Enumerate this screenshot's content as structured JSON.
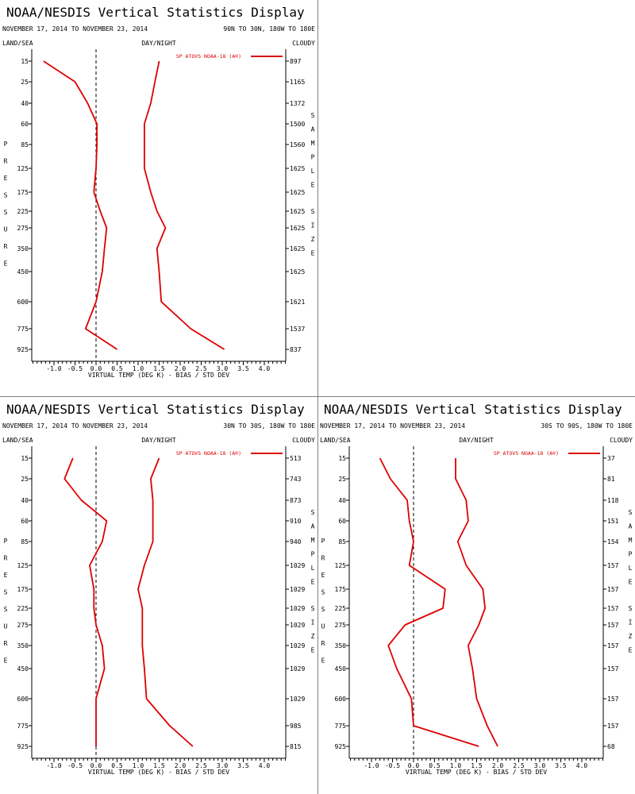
{
  "window": {
    "title": "NOAA/NESDIS Vertical Statistics Display"
  },
  "colors": {
    "series": "#dd0000",
    "axis": "#000000",
    "zero_line": "#000000",
    "divider": "#808080"
  },
  "panels": [
    {
      "title": "NOAA/NESDIS Vertical Statistics Display",
      "date_range": "NOVEMBER 17, 2014 TO NOVEMBER 23, 2014",
      "region": "90N TO 30N, 180W TO 180E",
      "left_corner": "LAND/SEA",
      "center_header": "DAY/NIGHT",
      "right_corner": "CLOUDY",
      "left_side_label": "PRESSURE",
      "right_side_label": "SAMPLE SIZE",
      "legend": "SP ATOVS NOAA-18 (A®)"
    },
    {
      "title": "NOAA/NESDIS Vertical Statistics Display",
      "date_range": "NOVEMBER 17, 2014 TO NOVEMBER 23, 2014",
      "region": "30N TO 30S, 180W TO 180E",
      "left_corner": "LAND/SEA",
      "center_header": "DAY/NIGHT",
      "right_corner": "CLOUDY",
      "left_side_label": "PRESSURE",
      "right_side_label": "SAMPLE SIZE",
      "legend": "SP ATOVS NOAA-18 (A®)"
    },
    {
      "title": "NOAA/NESDIS Vertical Statistics Display",
      "date_range": "NOVEMBER 17, 2014 TO NOVEMBER 23, 2014",
      "region": "30S TO 90S, 180W TO 180E",
      "left_corner": "LAND/SEA",
      "center_header": "DAY/NIGHT",
      "right_corner": "CLOUDY",
      "left_side_label": "PRESSURE",
      "right_side_label": "SAMPLE SIZE",
      "legend": "SP ATOVS NOAA-18 (A®)"
    }
  ],
  "chart_data": [
    {
      "type": "line",
      "region": "90N TO 30N, 180W TO 180E",
      "xlabel": "VIRTUAL TEMP (DEG K) - BIAS / STD DEV",
      "x_ticks": [
        "-1.0",
        "-0.5",
        "0.0",
        "0.5",
        "1.0",
        "1.5",
        "2.0",
        "2.5",
        "3.0",
        "3.5",
        "4.0"
      ],
      "xlim": [
        -1.5,
        4.5
      ],
      "pressure_levels": [
        "15",
        "25",
        "40",
        "60",
        "85",
        "125",
        "175",
        "225",
        "275",
        "350",
        "450",
        "600",
        "775",
        "925"
      ],
      "sample_size": [
        "897",
        "1165",
        "1372",
        "1500",
        "1560",
        "1625",
        "1625",
        "1625",
        "1625",
        "1625",
        "1625",
        "1621",
        "1537",
        "837"
      ],
      "series": [
        {
          "name": "BIAS",
          "values": [
            -1.25,
            -0.5,
            -0.2,
            0.02,
            0.02,
            0.0,
            -0.05,
            0.1,
            0.25,
            0.2,
            0.15,
            0.0,
            -0.25,
            0.5
          ]
        },
        {
          "name": "STD DEV",
          "values": [
            1.5,
            1.4,
            1.3,
            1.15,
            1.15,
            1.15,
            1.3,
            1.45,
            1.65,
            1.45,
            1.5,
            1.55,
            2.25,
            3.05
          ]
        }
      ]
    },
    {
      "type": "line",
      "region": "30N TO 30S, 180W TO 180E",
      "xlabel": "VIRTUAL TEMP (DEG K) - BIAS / STD DEV",
      "x_ticks": [
        "-1.0",
        "-0.5",
        "0.0",
        "0.5",
        "1.0",
        "1.5",
        "2.0",
        "2.5",
        "3.0",
        "3.5",
        "4.0"
      ],
      "xlim": [
        -1.5,
        4.5
      ],
      "pressure_levels": [
        "15",
        "25",
        "40",
        "60",
        "85",
        "125",
        "175",
        "225",
        "275",
        "350",
        "450",
        "600",
        "775",
        "925"
      ],
      "sample_size": [
        "513",
        "743",
        "873",
        "910",
        "940",
        "1029",
        "1029",
        "1029",
        "1029",
        "1029",
        "1029",
        "1029",
        "985",
        "815"
      ],
      "series": [
        {
          "name": "BIAS",
          "values": [
            -0.55,
            -0.75,
            -0.35,
            0.25,
            0.15,
            -0.15,
            -0.05,
            -0.05,
            0.0,
            0.15,
            0.2,
            0.0,
            0.0,
            0.0
          ]
        },
        {
          "name": "STD DEV",
          "values": [
            1.5,
            1.3,
            1.35,
            1.35,
            1.35,
            1.15,
            1.0,
            1.1,
            1.1,
            1.1,
            1.15,
            1.2,
            1.75,
            2.3
          ]
        }
      ]
    },
    {
      "type": "line",
      "region": "30S TO 90S, 180W TO 180E",
      "xlabel": "VIRTUAL TEMP (DEG K) - BIAS / STD DEV",
      "x_ticks": [
        "-1.0",
        "-0.5",
        "0.0",
        "0.5",
        "1.0",
        "1.5",
        "2.0",
        "2.5",
        "3.0",
        "3.5",
        "4.0"
      ],
      "xlim": [
        -1.5,
        4.5
      ],
      "pressure_levels": [
        "15",
        "25",
        "40",
        "60",
        "85",
        "125",
        "175",
        "225",
        "275",
        "350",
        "450",
        "600",
        "775",
        "925"
      ],
      "sample_size": [
        "37",
        "81",
        "118",
        "151",
        "154",
        "157",
        "157",
        "157",
        "157",
        "157",
        "157",
        "157",
        "157",
        "68"
      ],
      "series": [
        {
          "name": "BIAS",
          "values": [
            -0.8,
            -0.55,
            -0.15,
            -0.1,
            0.0,
            -0.1,
            0.75,
            0.7,
            -0.2,
            -0.6,
            -0.4,
            -0.05,
            0.0,
            1.55
          ]
        },
        {
          "name": "STD DEV",
          "values": [
            1.0,
            1.0,
            1.25,
            1.3,
            1.05,
            1.25,
            1.65,
            1.7,
            1.55,
            1.3,
            1.4,
            1.5,
            1.75,
            2.0
          ]
        }
      ]
    }
  ]
}
